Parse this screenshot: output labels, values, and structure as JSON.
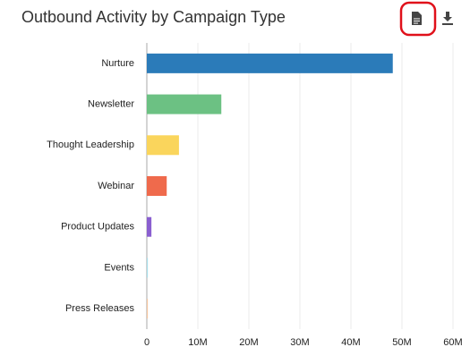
{
  "chart_data": {
    "type": "bar",
    "orientation": "horizontal",
    "title": "Outbound Activity by Campaign Type",
    "categories": [
      "Nurture",
      "Newsletter",
      "Thought Leadership",
      "Webinar",
      "Product Updates",
      "Events",
      "Press Releases"
    ],
    "values": [
      48200000,
      14600000,
      6300000,
      3900000,
      900000,
      200000,
      200000
    ],
    "colors": [
      "#2b7bb9",
      "#6cc183",
      "#fad55c",
      "#ef6a4c",
      "#8a5fd0",
      "#a8dde9",
      "#f4c6a0"
    ],
    "xlim": [
      0,
      60000000
    ],
    "xticks": [
      0,
      {
        "value": 10000000,
        "label": "10M"
      },
      {
        "value": 20000000,
        "label": "20M"
      },
      {
        "value": 30000000,
        "label": "30M"
      },
      {
        "value": 40000000,
        "label": "40M"
      },
      {
        "value": 50000000,
        "label": "50M"
      },
      {
        "value": 60000000,
        "label": "60M"
      }
    ],
    "grid": true
  }
}
